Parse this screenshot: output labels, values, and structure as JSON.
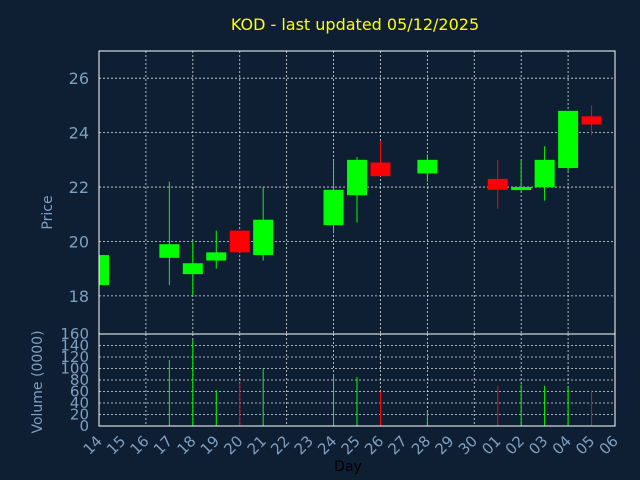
{
  "chart_data": {
    "type": "candlestick",
    "title": "KOD - last updated 05/12/2025",
    "xlabel": "Day",
    "colors": {
      "background": "#0f1f33",
      "up": "#00ff00",
      "down": "#ff0000",
      "title": "#ffff00",
      "axis_text": "#7f9fbf",
      "grid": "#ffffff"
    },
    "x_ticks": [
      "14",
      "15",
      "16",
      "17",
      "18",
      "19",
      "20",
      "21",
      "22",
      "23",
      "24",
      "25",
      "26",
      "27",
      "28",
      "29",
      "30",
      "01",
      "02",
      "03",
      "04",
      "05",
      "06"
    ],
    "price_panel": {
      "ylabel": "Price",
      "ylim": [
        16.6,
        27.0
      ],
      "y_ticks": [
        18,
        20,
        22,
        24,
        26
      ],
      "grid": true
    },
    "volume_panel": {
      "ylabel": "Volume (0000)",
      "ylim": [
        0,
        160
      ],
      "y_ticks": [
        0,
        20,
        40,
        60,
        80,
        100,
        120,
        140,
        160
      ],
      "grid": true
    },
    "candles": [
      {
        "day": "14",
        "open": 18.4,
        "close": 19.5,
        "high": 19.5,
        "low": 18.4,
        "volume": 0
      },
      {
        "day": "17",
        "open": 19.4,
        "close": 19.9,
        "high": 22.2,
        "low": 18.4,
        "volume": 115
      },
      {
        "day": "18",
        "open": 18.8,
        "close": 19.2,
        "high": 20.0,
        "low": 18.0,
        "volume": 150
      },
      {
        "day": "19",
        "open": 19.3,
        "close": 19.6,
        "high": 20.4,
        "low": 19.0,
        "volume": 62
      },
      {
        "day": "20",
        "open": 20.4,
        "close": 19.6,
        "high": 20.4,
        "low": 19.6,
        "volume": 75
      },
      {
        "day": "21",
        "open": 19.5,
        "close": 20.8,
        "high": 22.0,
        "low": 19.3,
        "volume": 100
      },
      {
        "day": "24",
        "open": 20.6,
        "close": 21.9,
        "high": 23.0,
        "low": 20.3,
        "volume": 90
      },
      {
        "day": "25",
        "open": 21.7,
        "close": 23.0,
        "high": 23.1,
        "low": 20.7,
        "volume": 85
      },
      {
        "day": "26",
        "open": 22.9,
        "close": 22.4,
        "high": 23.7,
        "low": 22.4,
        "volume": 60
      },
      {
        "day": "28",
        "open": 22.5,
        "close": 23.0,
        "high": 23.2,
        "low": 22.2,
        "volume": 25
      },
      {
        "day": "01",
        "open": 22.3,
        "close": 21.9,
        "high": 23.0,
        "low": 21.2,
        "volume": 70
      },
      {
        "day": "02",
        "open": 21.9,
        "close": 22.0,
        "high": 23.0,
        "low": 21.8,
        "volume": 72
      },
      {
        "day": "03",
        "open": 22.0,
        "close": 23.0,
        "high": 23.5,
        "low": 21.5,
        "volume": 70
      },
      {
        "day": "04",
        "open": 22.7,
        "close": 24.8,
        "high": 24.8,
        "low": 22.6,
        "volume": 68
      },
      {
        "day": "05",
        "open": 24.6,
        "close": 24.3,
        "high": 25.0,
        "low": 23.9,
        "volume": 62
      }
    ]
  }
}
